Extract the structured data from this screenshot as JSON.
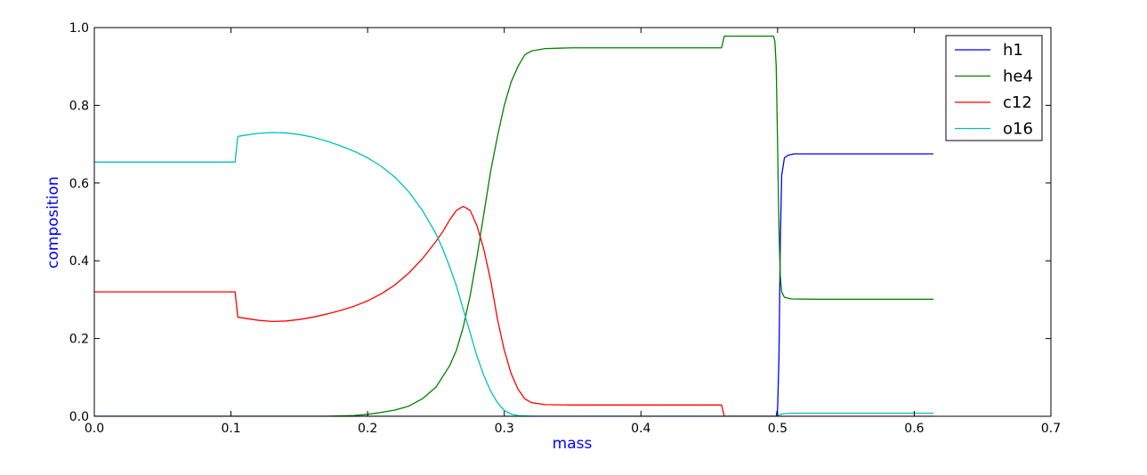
{
  "chart_data": {
    "type": "line",
    "title": "",
    "xlabel": "mass",
    "ylabel": "composition",
    "xlim": [
      0.0,
      0.7
    ],
    "ylim": [
      0.0,
      1.0
    ],
    "x_ticks": [
      "0.0",
      "0.1",
      "0.2",
      "0.3",
      "0.4",
      "0.5",
      "0.6",
      "0.7"
    ],
    "y_ticks": [
      "0.0",
      "0.2",
      "0.4",
      "0.6",
      "0.8",
      "1.0"
    ],
    "grid": false,
    "legend_position": "top-right",
    "series": [
      {
        "name": "h1",
        "color": "#0000ff",
        "points": [
          [
            0.0,
            0.0
          ],
          [
            0.499,
            0.0
          ],
          [
            0.5,
            0.02
          ],
          [
            0.501,
            0.15
          ],
          [
            0.502,
            0.45
          ],
          [
            0.503,
            0.62
          ],
          [
            0.505,
            0.665
          ],
          [
            0.508,
            0.672
          ],
          [
            0.512,
            0.675
          ],
          [
            0.53,
            0.675
          ],
          [
            0.614,
            0.675
          ]
        ]
      },
      {
        "name": "he4",
        "color": "#008000",
        "points": [
          [
            0.0,
            0.0
          ],
          [
            0.17,
            0.0
          ],
          [
            0.19,
            0.002
          ],
          [
            0.2,
            0.005
          ],
          [
            0.21,
            0.01
          ],
          [
            0.22,
            0.016
          ],
          [
            0.23,
            0.026
          ],
          [
            0.24,
            0.045
          ],
          [
            0.25,
            0.075
          ],
          [
            0.26,
            0.13
          ],
          [
            0.265,
            0.17
          ],
          [
            0.27,
            0.23
          ],
          [
            0.275,
            0.31
          ],
          [
            0.28,
            0.41
          ],
          [
            0.285,
            0.52
          ],
          [
            0.29,
            0.63
          ],
          [
            0.295,
            0.72
          ],
          [
            0.3,
            0.8
          ],
          [
            0.305,
            0.86
          ],
          [
            0.31,
            0.9
          ],
          [
            0.315,
            0.93
          ],
          [
            0.32,
            0.94
          ],
          [
            0.33,
            0.946
          ],
          [
            0.35,
            0.948
          ],
          [
            0.4,
            0.948
          ],
          [
            0.459,
            0.948
          ],
          [
            0.461,
            0.978
          ],
          [
            0.497,
            0.978
          ],
          [
            0.498,
            0.965
          ],
          [
            0.499,
            0.9
          ],
          [
            0.5,
            0.7
          ],
          [
            0.501,
            0.48
          ],
          [
            0.502,
            0.36
          ],
          [
            0.503,
            0.32
          ],
          [
            0.505,
            0.306
          ],
          [
            0.51,
            0.302
          ],
          [
            0.53,
            0.301
          ],
          [
            0.614,
            0.301
          ]
        ]
      },
      {
        "name": "c12",
        "color": "#ff0000",
        "points": [
          [
            0.0,
            0.32
          ],
          [
            0.103,
            0.32
          ],
          [
            0.105,
            0.255
          ],
          [
            0.12,
            0.247
          ],
          [
            0.13,
            0.244
          ],
          [
            0.14,
            0.245
          ],
          [
            0.15,
            0.249
          ],
          [
            0.16,
            0.255
          ],
          [
            0.17,
            0.263
          ],
          [
            0.18,
            0.272
          ],
          [
            0.19,
            0.283
          ],
          [
            0.2,
            0.297
          ],
          [
            0.21,
            0.315
          ],
          [
            0.22,
            0.338
          ],
          [
            0.23,
            0.368
          ],
          [
            0.24,
            0.405
          ],
          [
            0.25,
            0.45
          ],
          [
            0.255,
            0.475
          ],
          [
            0.26,
            0.505
          ],
          [
            0.265,
            0.53
          ],
          [
            0.27,
            0.54
          ],
          [
            0.275,
            0.53
          ],
          [
            0.28,
            0.49
          ],
          [
            0.285,
            0.43
          ],
          [
            0.29,
            0.35
          ],
          [
            0.295,
            0.25
          ],
          [
            0.3,
            0.17
          ],
          [
            0.305,
            0.11
          ],
          [
            0.31,
            0.07
          ],
          [
            0.315,
            0.045
          ],
          [
            0.32,
            0.035
          ],
          [
            0.33,
            0.03
          ],
          [
            0.35,
            0.029
          ],
          [
            0.4,
            0.029
          ],
          [
            0.459,
            0.029
          ],
          [
            0.461,
            0.0
          ],
          [
            0.614,
            0.0
          ]
        ]
      },
      {
        "name": "o16",
        "color": "#00bfbf",
        "points": [
          [
            0.0,
            0.654
          ],
          [
            0.103,
            0.654
          ],
          [
            0.105,
            0.72
          ],
          [
            0.11,
            0.723
          ],
          [
            0.12,
            0.728
          ],
          [
            0.13,
            0.73
          ],
          [
            0.14,
            0.729
          ],
          [
            0.15,
            0.725
          ],
          [
            0.16,
            0.718
          ],
          [
            0.17,
            0.708
          ],
          [
            0.18,
            0.696
          ],
          [
            0.19,
            0.682
          ],
          [
            0.2,
            0.665
          ],
          [
            0.21,
            0.643
          ],
          [
            0.22,
            0.615
          ],
          [
            0.23,
            0.578
          ],
          [
            0.24,
            0.53
          ],
          [
            0.25,
            0.47
          ],
          [
            0.255,
            0.43
          ],
          [
            0.26,
            0.385
          ],
          [
            0.265,
            0.335
          ],
          [
            0.27,
            0.275
          ],
          [
            0.275,
            0.215
          ],
          [
            0.28,
            0.155
          ],
          [
            0.285,
            0.105
          ],
          [
            0.29,
            0.065
          ],
          [
            0.295,
            0.035
          ],
          [
            0.3,
            0.015
          ],
          [
            0.305,
            0.006
          ],
          [
            0.31,
            0.002
          ],
          [
            0.32,
            0.0
          ],
          [
            0.499,
            0.0
          ],
          [
            0.501,
            0.003
          ],
          [
            0.503,
            0.006
          ],
          [
            0.51,
            0.008
          ],
          [
            0.53,
            0.008
          ],
          [
            0.614,
            0.008
          ]
        ]
      }
    ]
  }
}
